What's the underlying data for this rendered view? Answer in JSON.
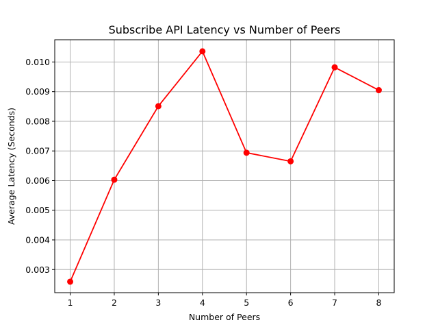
{
  "chart_data": {
    "type": "line",
    "title": "Subscribe API Latency vs Number of Peers",
    "xlabel": "Number of Peers",
    "ylabel": "Average Latency (Seconds)",
    "x": [
      1,
      2,
      3,
      4,
      5,
      6,
      7,
      8
    ],
    "xticks": [
      "1",
      "2",
      "3",
      "4",
      "5",
      "6",
      "7",
      "8"
    ],
    "yticks": [
      "0.003",
      "0.004",
      "0.005",
      "0.006",
      "0.007",
      "0.008",
      "0.009",
      "0.010"
    ],
    "xlim": [
      0.65,
      8.35
    ],
    "ylim": [
      0.00222,
      0.01075
    ],
    "grid": true,
    "series": [
      {
        "color": "#ff0000",
        "marker": "circle",
        "values": [
          0.00259,
          0.00603,
          0.00851,
          0.01036,
          0.00694,
          0.00665,
          0.00982,
          0.00905
        ]
      }
    ]
  }
}
